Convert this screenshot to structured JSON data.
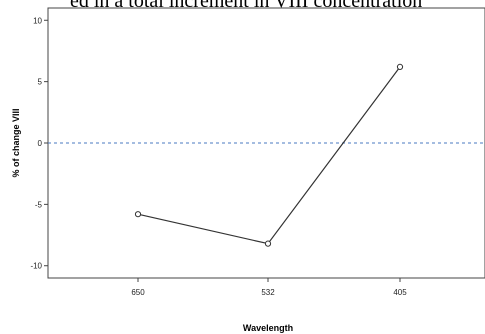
{
  "caption_text": "ed in a total increment in VIII concentration",
  "chart_data": {
    "type": "line",
    "categories": [
      "650",
      "532",
      "405"
    ],
    "values": [
      -5.8,
      -8.2,
      6.2
    ],
    "title": "",
    "xlabel": "Wavelength",
    "ylabel": "% of change VIII",
    "ylim": [
      -11,
      11
    ],
    "yticks": [
      "10",
      "5",
      "0",
      "-5",
      "-10"
    ],
    "reference_line": 0,
    "grid": false,
    "colors": {
      "line": "#333333",
      "reference": "#4a78c0",
      "axis": "#444444"
    }
  }
}
